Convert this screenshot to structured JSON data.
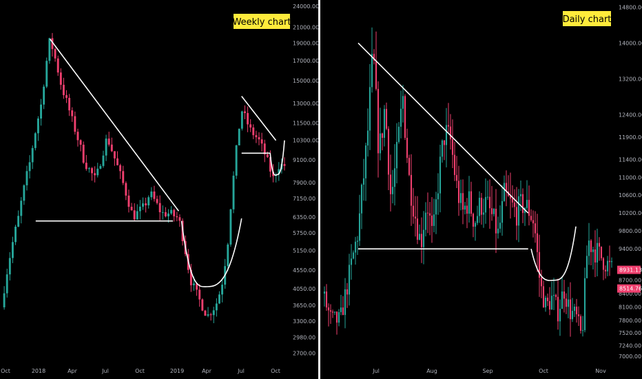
{
  "colors": {
    "background": "#000000",
    "bull": "#26a69a",
    "bear": "#ef3f6e",
    "drawing": "#ffffff",
    "badge": "#ffeb3b",
    "axis_text": "#b2b5be",
    "price_tag": "#ef3f6e"
  },
  "chart_data": [
    {
      "type": "candlestick",
      "title": "Weekly chart",
      "y_scale": "log",
      "ylim": [
        2500,
        24500
      ],
      "y_ticks": [
        "24000.00",
        "21000.00",
        "19000.00",
        "17000.00",
        "15000.00",
        "13000.00",
        "11500.00",
        "10300.00",
        "9100.00",
        "7900.00",
        "7150.00",
        "6350.00",
        "5750.00",
        "5150.00",
        "4550.00",
        "4050.00",
        "3650.00",
        "3300.00",
        "2980.00",
        "2700.00"
      ],
      "x_ticks": [
        "Oct",
        "2018",
        "Apr",
        "Jul",
        "Oct",
        "2019",
        "Apr",
        "Jul",
        "Oct"
      ],
      "ohlc_path": [
        [
          0,
          3600
        ],
        [
          6,
          6350
        ],
        [
          10,
          9000
        ],
        [
          14,
          13000
        ],
        [
          17,
          19500
        ],
        [
          21,
          14500
        ],
        [
          25,
          11500
        ],
        [
          29,
          9000
        ],
        [
          33,
          8000
        ],
        [
          37,
          10500
        ],
        [
          40,
          9000
        ],
        [
          44,
          7200
        ],
        [
          46,
          6350
        ],
        [
          50,
          6800
        ],
        [
          52,
          7400
        ],
        [
          56,
          6500
        ],
        [
          59,
          6500
        ],
        [
          62,
          6300
        ],
        [
          66,
          4300
        ],
        [
          69,
          3800
        ],
        [
          72,
          3400
        ],
        [
          75,
          3650
        ],
        [
          77,
          4100
        ],
        [
          79,
          5200
        ],
        [
          81,
          7900
        ],
        [
          84,
          12500
        ],
        [
          87,
          11000
        ],
        [
          90,
          10300
        ],
        [
          92,
          9500
        ],
        [
          95,
          8100
        ],
        [
          97,
          8800
        ],
        [
          99,
          8800
        ]
      ],
      "annotations": [
        {
          "kind": "trendline",
          "from": [
            17,
            19500
          ],
          "to": [
            62,
            6600
          ]
        },
        {
          "kind": "support",
          "from": [
            12,
            6200
          ],
          "to": [
            60,
            6200
          ]
        },
        {
          "kind": "cup",
          "from": [
            63,
            6200
          ],
          "bottom": [
            72,
            4100
          ],
          "to": [
            84,
            6300
          ]
        },
        {
          "kind": "trendline",
          "from": [
            84,
            13600
          ],
          "to": [
            96,
            10300
          ]
        },
        {
          "kind": "support",
          "from": [
            84,
            9500
          ],
          "to": [
            94,
            9500
          ]
        },
        {
          "kind": "cup",
          "from": [
            94,
            9500
          ],
          "bottom": [
            96.5,
            8300
          ],
          "to": [
            99,
            10300
          ]
        }
      ]
    },
    {
      "type": "candlestick",
      "title": "Daily chart",
      "y_scale": "linear",
      "ylim": [
        6800,
        14900
      ],
      "y_ticks": [
        "14800.00",
        "14000.00",
        "13200.00",
        "12400.00",
        "11900.00",
        "11400.00",
        "11000.00",
        "10600.00",
        "10200.00",
        "9800.00",
        "9400.00",
        "8700.00",
        "8400.00",
        "8100.00",
        "7800.00",
        "7520.00",
        "7240.00",
        "7000.00"
      ],
      "x_ticks": [
        "Jul",
        "Aug",
        "Sep",
        "Oct",
        "Nov"
      ],
      "price_tags": [
        {
          "label": "8931.13",
          "value": 8931.13
        },
        {
          "label": "8514.76",
          "value": 8514.76
        }
      ],
      "ohlc_path": [
        [
          0,
          8400
        ],
        [
          3,
          7800
        ],
        [
          6,
          7800
        ],
        [
          9,
          8800
        ],
        [
          12,
          9800
        ],
        [
          15,
          11800
        ],
        [
          17,
          13800
        ],
        [
          19,
          11500
        ],
        [
          21,
          12600
        ],
        [
          23,
          10500
        ],
        [
          25,
          11500
        ],
        [
          27,
          12800
        ],
        [
          29,
          11000
        ],
        [
          31,
          10200
        ],
        [
          33,
          9500
        ],
        [
          35,
          10500
        ],
        [
          37,
          9600
        ],
        [
          39,
          11000
        ],
        [
          41,
          12000
        ],
        [
          43,
          11800
        ],
        [
          45,
          10800
        ],
        [
          47,
          10200
        ],
        [
          49,
          10500
        ],
        [
          51,
          10000
        ],
        [
          53,
          10400
        ],
        [
          55,
          10400
        ],
        [
          57,
          10100
        ],
        [
          59,
          9700
        ],
        [
          61,
          10600
        ],
        [
          63,
          10400
        ],
        [
          65,
          10200
        ],
        [
          67,
          10400
        ],
        [
          69,
          10300
        ],
        [
          71,
          10000
        ],
        [
          73,
          8600
        ],
        [
          75,
          8100
        ],
        [
          77,
          8300
        ],
        [
          79,
          8000
        ],
        [
          81,
          8500
        ],
        [
          83,
          8000
        ],
        [
          85,
          7900
        ],
        [
          87,
          7400
        ],
        [
          89,
          9600
        ],
        [
          91,
          9400
        ],
        [
          93,
          9250
        ],
        [
          95,
          9100
        ],
        [
          97,
          8931
        ]
      ],
      "annotations": [
        {
          "kind": "trendline",
          "from": [
            12,
            14000
          ],
          "to": [
            69,
            10200
          ]
        },
        {
          "kind": "support",
          "from": [
            12,
            9400
          ],
          "to": [
            69,
            9400
          ]
        },
        {
          "kind": "cup",
          "from": [
            70,
            9400
          ],
          "bottom": [
            78,
            8700
          ],
          "to": [
            85,
            9900
          ]
        }
      ]
    }
  ]
}
